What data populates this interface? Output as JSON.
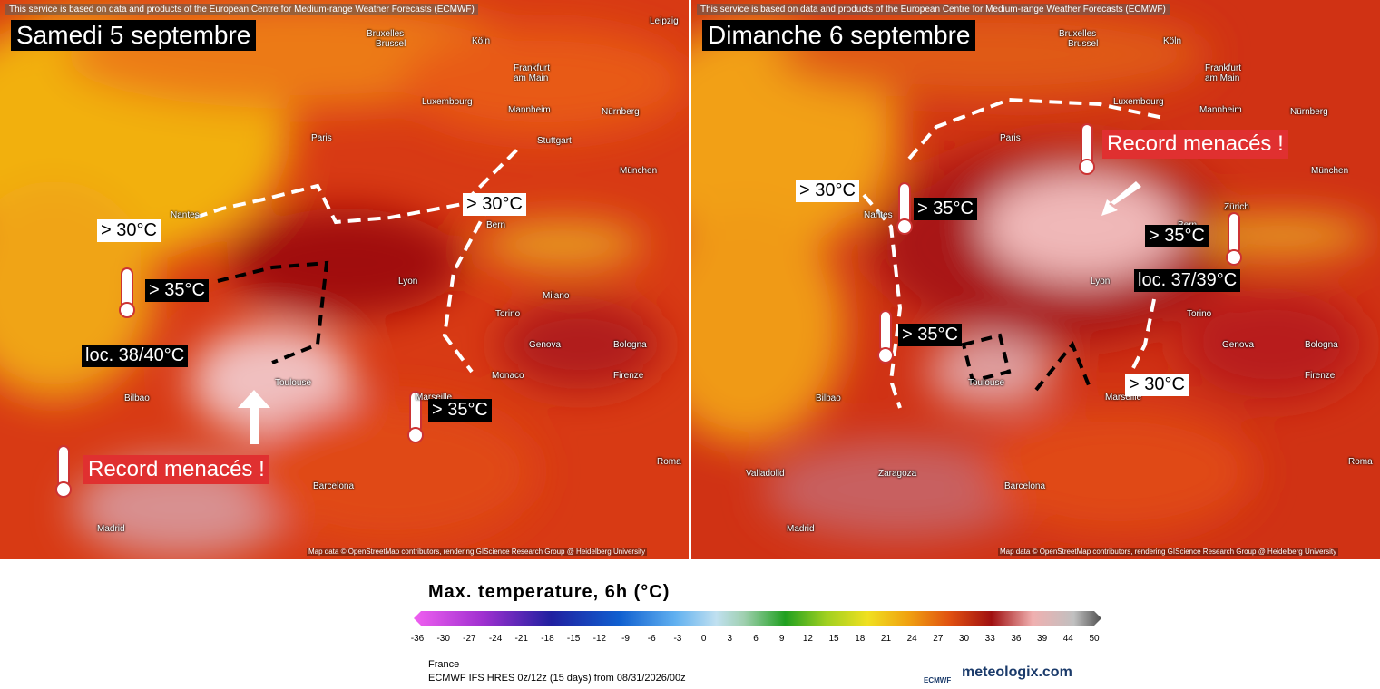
{
  "panels": [
    {
      "attribution": "This service is based on data and products of the European Centre for Medium-range Weather Forecasts (ECMWF)",
      "title": "Samedi 5 septembre",
      "annotations": [
        "> 30°C",
        "> 35°C",
        "loc. 38/40°C",
        "Record menacés !",
        "> 30°C",
        "> 35°C"
      ],
      "cities": [
        "Bruxelles",
        "Brussel",
        "Köln",
        "Leipzig",
        "Frankfurt",
        "am Main",
        "Luxembourg",
        "Mannheim",
        "Nürnberg",
        "Paris",
        "Stuttgart",
        "München",
        "Nantes",
        "Bern",
        "Lyon",
        "Milano",
        "Torino",
        "Genova",
        "Bologna",
        "Monaco",
        "Firenze",
        "Bilbao",
        "Toulouse",
        "Marseille",
        "Roma",
        "Barcelona",
        "Madrid"
      ],
      "map_credit": "Map data © OpenStreetMap contributors, rendering GIScience Research Group @ Heidelberg University"
    },
    {
      "attribution": "This service is based on data and products of the European Centre for Medium-range Weather Forecasts (ECMWF)",
      "title": "Dimanche 6 septembre",
      "annotations": [
        "> 30°C",
        "> 35°C",
        "Record menacés !",
        "> 35°C",
        "loc. 37/39°C",
        "> 35°C",
        "> 30°C"
      ],
      "cities": [
        "Bruxelles",
        "Brussel",
        "Köln",
        "Frankfurt",
        "am Main",
        "Luxembourg",
        "Mannheim",
        "Nürnberg",
        "Paris",
        "München",
        "Nantes",
        "Zürich",
        "Bern",
        "Lyon",
        "Torino",
        "Genova",
        "Bologna",
        "Firenze",
        "Bilbao",
        "Toulouse",
        "Marseille",
        "Roma",
        "Valladolid",
        "Zaragoza",
        "Barcelona",
        "Madrid"
      ],
      "map_credit": "Map data © OpenStreetMap contributors, rendering GIScience Research Group @ Heidelberg University"
    }
  ],
  "colorbar": {
    "title": "Max. temperature, 6h (°C)",
    "ticks": [
      -36,
      -30,
      -27,
      -24,
      -21,
      -18,
      -15,
      -12,
      -9,
      -6,
      -3,
      0,
      3,
      6,
      9,
      12,
      15,
      18,
      21,
      24,
      27,
      30,
      33,
      36,
      39,
      44,
      50
    ]
  },
  "footer": {
    "region": "France",
    "model": "ECMWF IFS HRES 0z/12z (15 days) from  08/31/2026/00z",
    "logo": "ECMWF",
    "brand": "meteologix.com"
  }
}
